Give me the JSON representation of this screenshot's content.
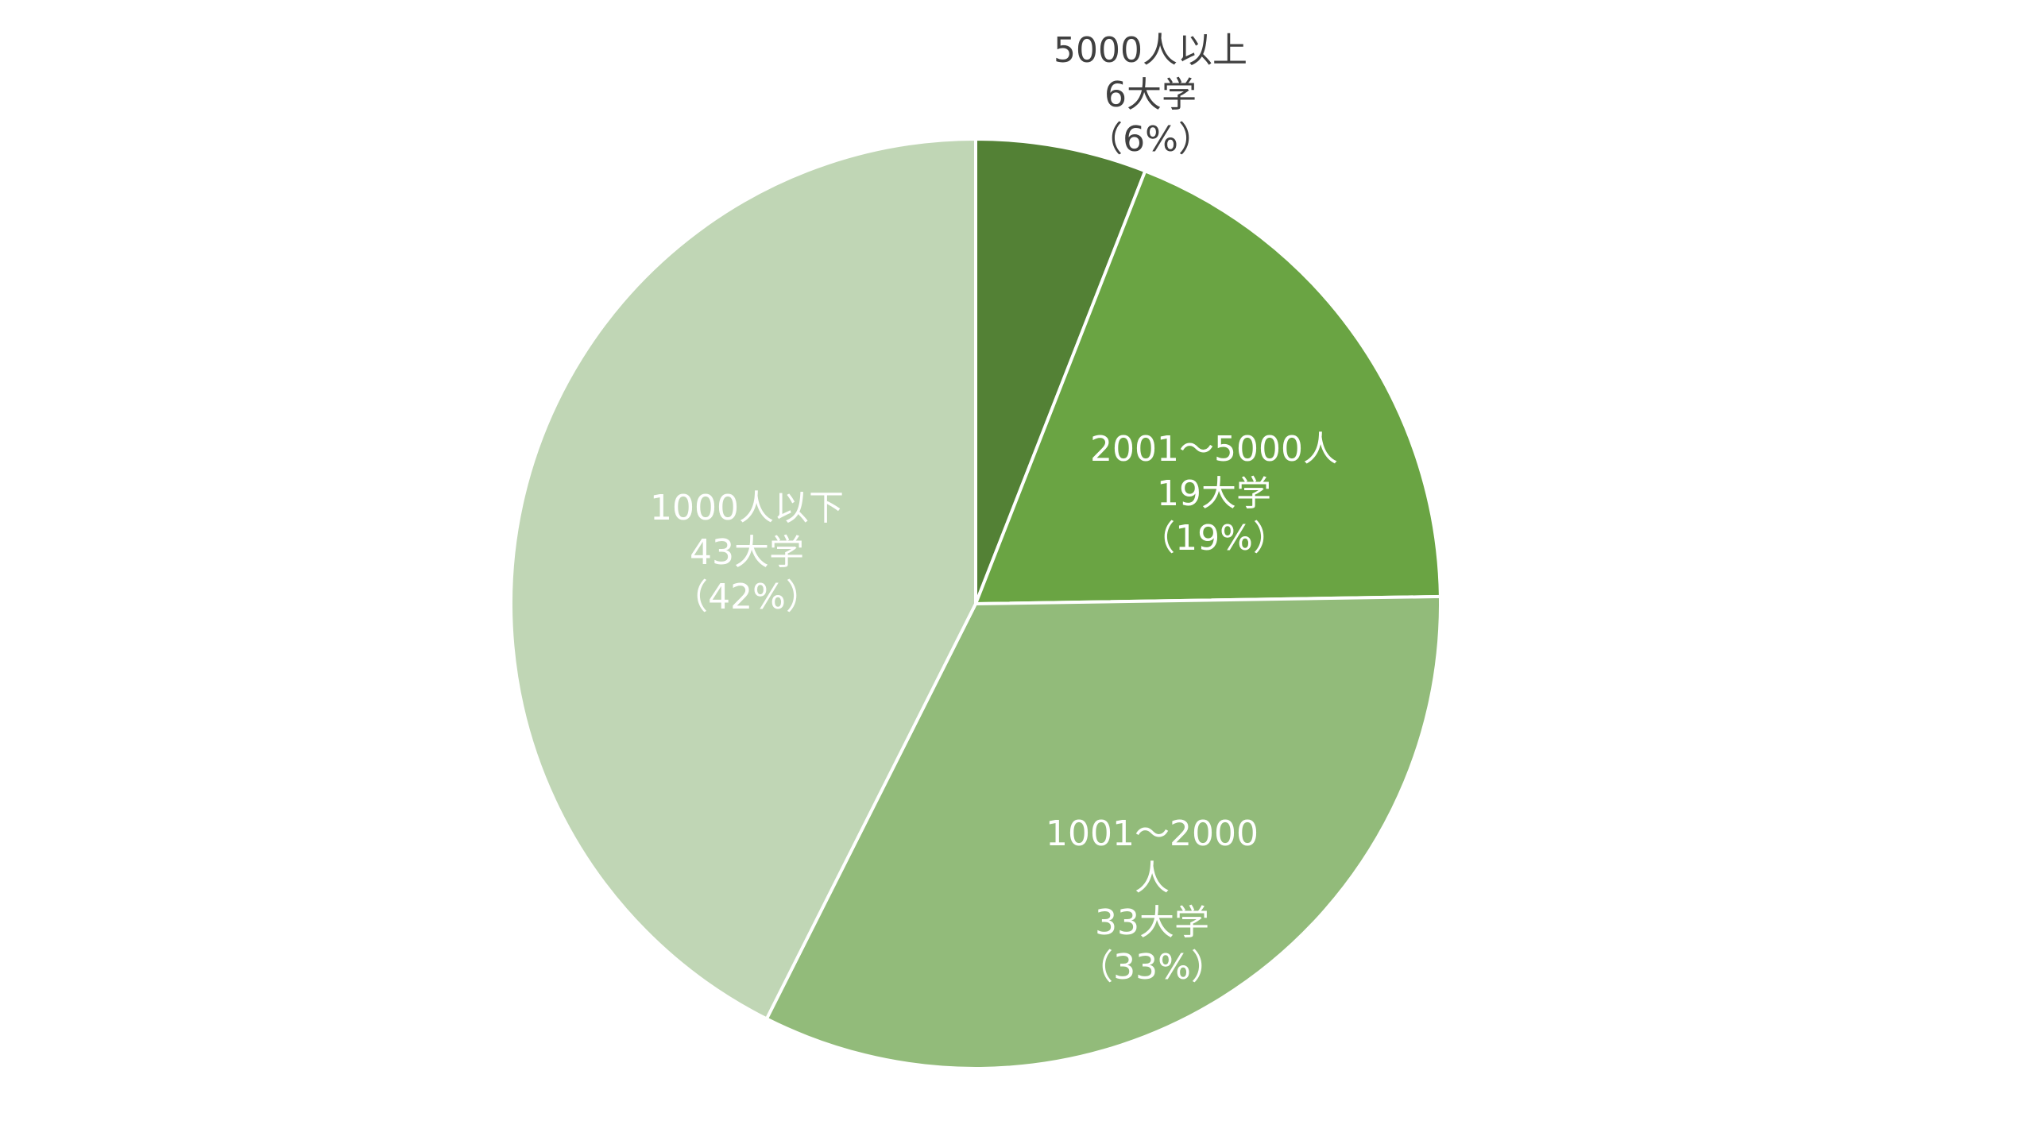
{
  "chart_data": {
    "type": "pie",
    "title": "",
    "start_angle_deg": 0,
    "direction": "clockwise",
    "slices": [
      {
        "label": "5000人以上",
        "count_text": "6大学",
        "percent_text": "（6%）",
        "value": 6,
        "color": "#538135",
        "label_color": "#404040",
        "label_position": "outside-top"
      },
      {
        "label": "2001～5000人",
        "count_text": "19大学",
        "percent_text": "（19%）",
        "value": 19,
        "color": "#6aa443",
        "label_color": "#ffffff",
        "label_position": "inside"
      },
      {
        "label": "1001～2000\n人",
        "count_text": "33大学",
        "percent_text": "（33%）",
        "value": 33,
        "color": "#92bb7a",
        "label_color": "#ffffff",
        "label_position": "inside"
      },
      {
        "label": "1000人以下",
        "count_text": "43大学",
        "percent_text": "（42%）",
        "value": 43,
        "color": "#c0d6b5",
        "label_color": "#ffffff",
        "label_position": "inside"
      }
    ]
  }
}
